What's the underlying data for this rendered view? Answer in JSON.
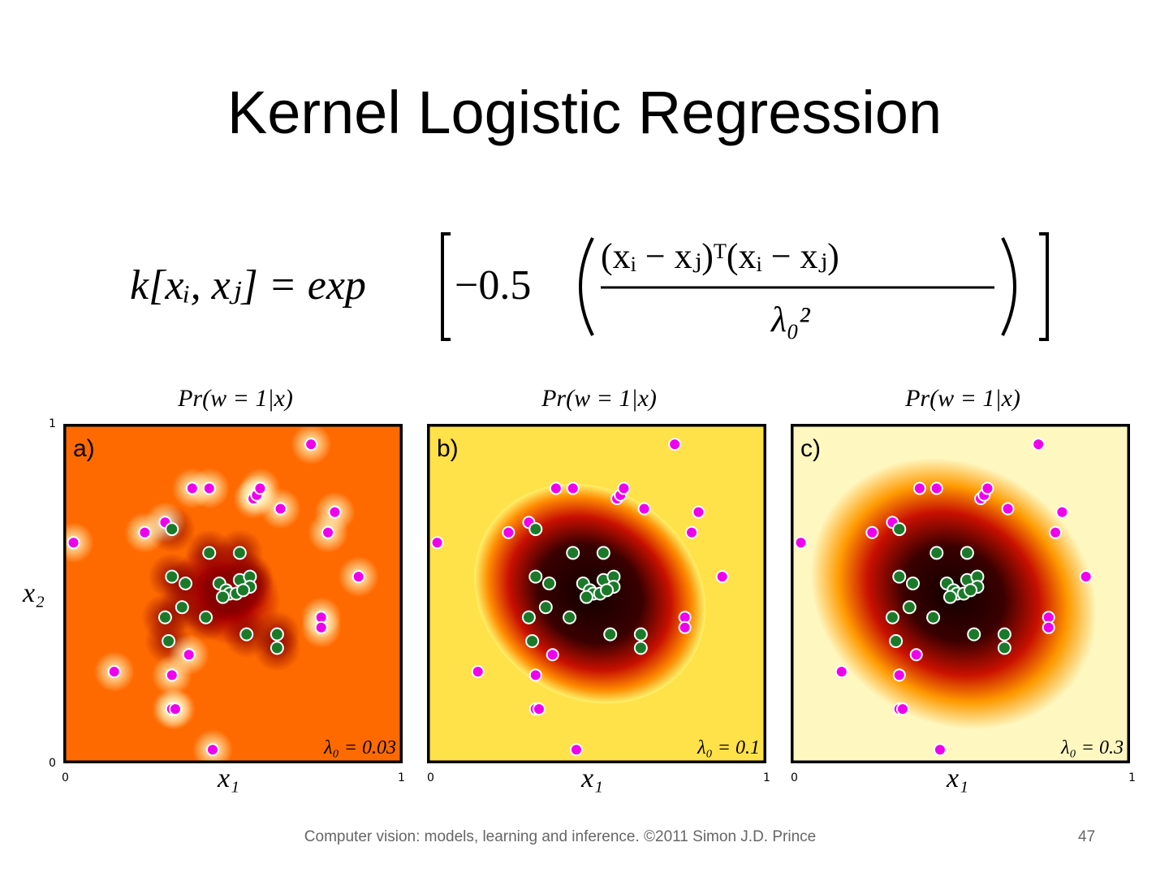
{
  "slide": {
    "title": "Kernel Logistic Regression",
    "footer": "Computer vision: models, learning and inference.  ©2011 Simon J.D. Prince",
    "page_number": "47"
  },
  "formula": {
    "lhs": "k[xᵢ, xⱼ] = exp",
    "coef": "−0.5",
    "numerator": "(xᵢ − xⱼ)ᵀ(xᵢ − xⱼ)",
    "denominator": "λ₀²"
  },
  "panels": [
    {
      "id": "a",
      "letter": "a)",
      "title": "Pr(w = 1|x)",
      "lambda_label": "λ₀ = 0.03",
      "lambda": 0.03,
      "x_label": "x₁",
      "y_label": "x₂",
      "x_ticks": [
        "0",
        "1"
      ],
      "y_ticks": [
        "0",
        "1"
      ]
    },
    {
      "id": "b",
      "letter": "b)",
      "title": "Pr(w = 1|x)",
      "lambda_label": "λ₀ = 0.1",
      "lambda": 0.1,
      "x_label": "x₁",
      "x_ticks": [
        "0",
        "1"
      ]
    },
    {
      "id": "c",
      "letter": "c)",
      "title": "Pr(w = 1|x)",
      "lambda_label": "λ₀ = 0.3",
      "lambda": 0.3,
      "x_label": "x₁",
      "x_ticks": [
        "0",
        "1"
      ]
    }
  ],
  "points": {
    "magenta": [
      [
        0.73,
        0.06
      ],
      [
        0.56,
        0.22
      ],
      [
        0.57,
        0.21
      ],
      [
        0.58,
        0.19
      ],
      [
        0.38,
        0.19
      ],
      [
        0.43,
        0.19
      ],
      [
        0.64,
        0.25
      ],
      [
        0.8,
        0.26
      ],
      [
        0.78,
        0.32
      ],
      [
        0.3,
        0.29
      ],
      [
        0.24,
        0.32
      ],
      [
        0.03,
        0.35
      ],
      [
        0.87,
        0.45
      ],
      [
        0.76,
        0.57
      ],
      [
        0.76,
        0.6
      ],
      [
        0.37,
        0.68
      ],
      [
        0.15,
        0.73
      ],
      [
        0.32,
        0.74
      ],
      [
        0.32,
        0.84
      ],
      [
        0.33,
        0.84
      ],
      [
        0.44,
        0.96
      ]
    ],
    "green": [
      [
        0.32,
        0.31
      ],
      [
        0.43,
        0.38
      ],
      [
        0.52,
        0.38
      ],
      [
        0.32,
        0.45
      ],
      [
        0.36,
        0.47
      ],
      [
        0.46,
        0.47
      ],
      [
        0.52,
        0.46
      ],
      [
        0.55,
        0.45
      ],
      [
        0.55,
        0.48
      ],
      [
        0.48,
        0.49
      ],
      [
        0.49,
        0.5
      ],
      [
        0.47,
        0.51
      ],
      [
        0.51,
        0.5
      ],
      [
        0.53,
        0.49
      ],
      [
        0.35,
        0.54
      ],
      [
        0.3,
        0.57
      ],
      [
        0.42,
        0.57
      ],
      [
        0.31,
        0.64
      ],
      [
        0.54,
        0.62
      ],
      [
        0.63,
        0.62
      ],
      [
        0.63,
        0.66
      ]
    ]
  },
  "colors": {
    "magenta": "#ee00ee",
    "green": "#1a7a2a",
    "outline": "#ffffff"
  }
}
